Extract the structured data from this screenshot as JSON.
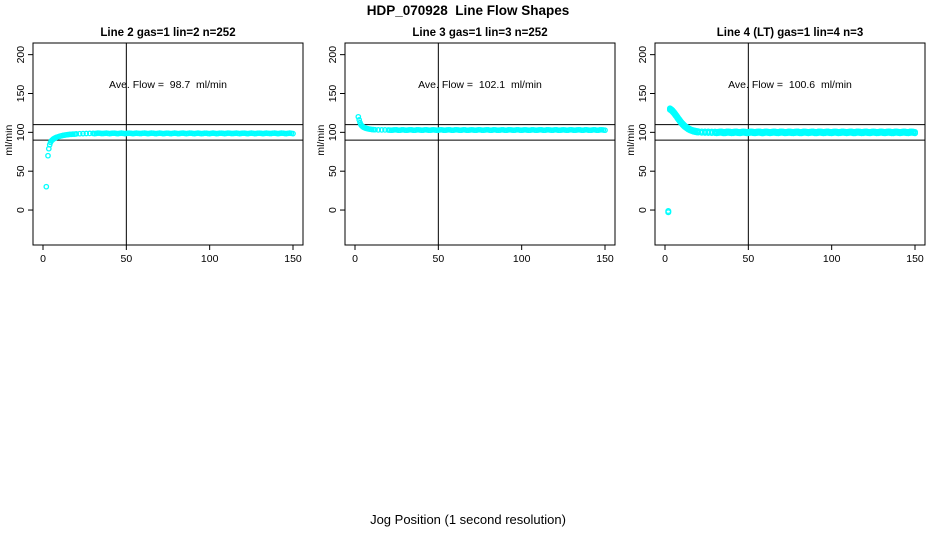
{
  "title": "HDP_070928  Line Flow Shapes",
  "xlabel": "Jog Position (1 second resolution)",
  "colors": {
    "data": "#00FFFF",
    "axis": "#000000",
    "background": "#FFFFFF"
  },
  "chart_data": [
    {
      "type": "scatter",
      "title": "Line 2 gas=1 lin=2 n=252",
      "line": 2,
      "gas": 1,
      "lin": 2,
      "n": 252,
      "annotation": "Ave. Flow =  98.7  ml/min",
      "ave_flow_ml_min": 98.7,
      "ylabel": "ml/min",
      "x_ticks": [
        0,
        50,
        100,
        150
      ],
      "y_ticks": [
        0,
        50,
        100,
        150,
        200
      ],
      "xlim": [
        -6,
        156
      ],
      "ylim": [
        -45,
        215
      ],
      "vline_x": 50,
      "hlines_y": [
        90,
        110
      ],
      "annotation_pos": {
        "x": 75,
        "y": 157
      },
      "marker_r": 2.2,
      "runs": 1,
      "run_spread": 0,
      "points": [
        [
          2,
          30
        ],
        [
          3,
          70
        ],
        [
          3.5,
          79
        ],
        [
          4,
          84
        ],
        [
          4.5,
          87
        ],
        [
          5,
          89
        ],
        [
          5.5,
          90
        ],
        [
          6,
          91
        ],
        [
          6.5,
          91.8
        ],
        [
          7,
          92.5
        ],
        [
          7.5,
          93
        ],
        [
          8,
          93.5
        ],
        [
          9,
          94.3
        ],
        [
          10,
          95
        ],
        [
          11,
          95.6
        ],
        [
          12,
          96.1
        ],
        [
          13,
          96.5
        ],
        [
          14,
          96.8
        ],
        [
          15,
          97.1
        ],
        [
          16,
          97.3
        ],
        [
          17,
          97.5
        ],
        [
          18,
          97.7
        ],
        [
          19,
          97.8
        ],
        [
          20,
          98
        ],
        [
          22,
          98.2
        ],
        [
          24,
          98.4
        ],
        [
          26,
          98.5
        ],
        [
          28,
          98.6
        ],
        [
          30,
          98.6
        ]
      ],
      "plateau": {
        "x_start": 31,
        "x_end": 150,
        "step": 1,
        "y": 98.7,
        "wiggle": 0.3
      }
    },
    {
      "type": "scatter",
      "title": "Line 3 gas=1 lin=3 n=252",
      "line": 3,
      "gas": 1,
      "lin": 3,
      "n": 252,
      "annotation": "Ave. Flow =  102.1  ml/min",
      "ave_flow_ml_min": 102.1,
      "ylabel": "ml/min",
      "x_ticks": [
        0,
        50,
        100,
        150
      ],
      "y_ticks": [
        0,
        50,
        100,
        150,
        200
      ],
      "xlim": [
        -6,
        156
      ],
      "ylim": [
        -45,
        215
      ],
      "vline_x": 50,
      "hlines_y": [
        90,
        110
      ],
      "annotation_pos": {
        "x": 75,
        "y": 157
      },
      "marker_r": 2.2,
      "runs": 1,
      "run_spread": 0,
      "points": [
        [
          2,
          120
        ],
        [
          2.5,
          116
        ],
        [
          3,
          112.5
        ],
        [
          3.5,
          110
        ],
        [
          4,
          108.5
        ],
        [
          4.5,
          107.5
        ],
        [
          5,
          106.8
        ],
        [
          5.5,
          106.2
        ],
        [
          6,
          105.7
        ],
        [
          6.5,
          105.3
        ],
        [
          7,
          105
        ],
        [
          8,
          104.4
        ],
        [
          9,
          104
        ],
        [
          10,
          103.7
        ],
        [
          11,
          103.5
        ],
        [
          12,
          103.4
        ],
        [
          14,
          103.2
        ],
        [
          16,
          103.1
        ],
        [
          18,
          103.1
        ],
        [
          20,
          103
        ]
      ],
      "plateau": {
        "x_start": 21,
        "x_end": 150,
        "step": 1,
        "y": 103,
        "wiggle": 0.3
      }
    },
    {
      "type": "scatter",
      "title": "Line 4 (LT) gas=1 lin=4 n=3",
      "line": 4,
      "line_note": "(LT)",
      "gas": 1,
      "lin": 4,
      "n": 3,
      "annotation": "Ave. Flow =  100.6  ml/min",
      "ave_flow_ml_min": 100.6,
      "ylabel": "ml/min",
      "x_ticks": [
        0,
        50,
        100,
        150
      ],
      "y_ticks": [
        0,
        50,
        100,
        150,
        200
      ],
      "xlim": [
        -6,
        156
      ],
      "ylim": [
        -45,
        215
      ],
      "vline_x": 50,
      "hlines_y": [
        90,
        110
      ],
      "annotation_pos": {
        "x": 75,
        "y": 157
      },
      "marker_r": 2.4,
      "runs": 2,
      "run_spread": 1.6,
      "outliers": [
        [
          2,
          -2
        ]
      ],
      "points": [
        [
          3,
          130
        ],
        [
          3.5,
          129.3
        ],
        [
          4,
          128.4
        ],
        [
          4.5,
          127.4
        ],
        [
          5,
          126.2
        ],
        [
          5.5,
          124.9
        ],
        [
          6,
          123.5
        ],
        [
          6.5,
          122
        ],
        [
          7,
          120.5
        ],
        [
          7.5,
          119
        ],
        [
          8,
          117.5
        ],
        [
          8.5,
          116
        ],
        [
          9,
          114.6
        ],
        [
          9.5,
          113.2
        ],
        [
          10,
          111.9
        ],
        [
          10.5,
          110.7
        ],
        [
          11,
          109.6
        ],
        [
          11.5,
          108.5
        ],
        [
          12,
          107.5
        ],
        [
          13,
          105.9
        ],
        [
          14,
          104.5
        ],
        [
          15,
          103.4
        ],
        [
          16,
          102.5
        ],
        [
          17,
          101.8
        ],
        [
          18,
          101.3
        ],
        [
          19,
          100.9
        ],
        [
          20,
          100.6
        ],
        [
          22,
          100.3
        ],
        [
          24,
          100.2
        ],
        [
          26,
          100.1
        ],
        [
          28,
          100
        ],
        [
          30,
          100
        ]
      ],
      "plateau": {
        "x_start": 31,
        "x_end": 150,
        "step": 1,
        "y": 100,
        "wiggle": 0.35
      }
    }
  ]
}
